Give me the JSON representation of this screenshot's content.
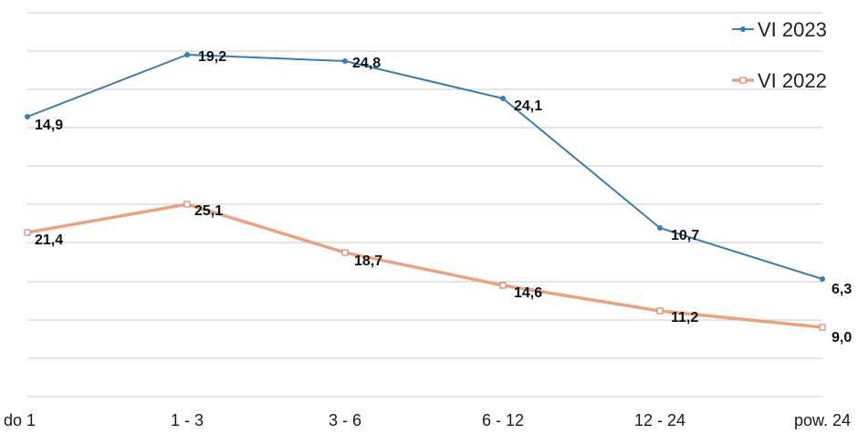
{
  "chart_data": {
    "type": "line",
    "categories": [
      "do 1",
      "1 - 3",
      "3 - 6",
      "6 - 12",
      "12 - 24",
      "pow. 24"
    ],
    "series": [
      {
        "name": "VI 2023",
        "color": "#3a7db0",
        "labels": [
          "14,9",
          "19,2",
          "24,8",
          "24,1",
          "10,7",
          "6,3"
        ]
      },
      {
        "name": "VI 2022",
        "color": "#e8a383",
        "labels": [
          "21,4",
          "25,1",
          "18,7",
          "14,6",
          "11,2",
          "9,0"
        ]
      }
    ],
    "grid": true,
    "legend_position": "top-right"
  }
}
